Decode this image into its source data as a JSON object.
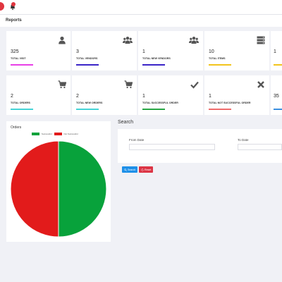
{
  "page_title": "Reports",
  "top_row": [
    {
      "value": "325",
      "label": "TOTAL VISIT",
      "icon": "user-icon",
      "accent": "#e83fe6"
    },
    {
      "value": "3",
      "label": "TOTAL VENDORS",
      "icon": "users-icon",
      "accent": "#3a24c7"
    },
    {
      "value": "1",
      "label": "TOTAL NEW VENDORS",
      "icon": "users-icon",
      "accent": "#3a24c7"
    },
    {
      "value": "10",
      "label": "TOTAL ITEMS",
      "icon": "server-icon",
      "accent": "#f2c41c"
    },
    {
      "value": "1",
      "label": "",
      "icon": "",
      "accent": "#f2c41c"
    }
  ],
  "bottom_row": [
    {
      "value": "2",
      "label": "TOTAL ORDERS",
      "icon": "cart-icon",
      "accent": "#45d3d6"
    },
    {
      "value": "2",
      "label": "TOTAL NEW ORDERS",
      "icon": "cart-icon",
      "accent": "#45d3d6"
    },
    {
      "value": "1",
      "label": "TOTAL SUCCESSFUL ORDER",
      "icon": "check-icon",
      "accent": "#28a745"
    },
    {
      "value": "1",
      "label": "TOTAL NOT SUCCESSFUL ORDER",
      "icon": "x-icon",
      "accent": "#ef6b6b"
    },
    {
      "value": "35",
      "label": "",
      "icon": "",
      "accent": "#3a8fe0"
    }
  ],
  "orders": {
    "title": "Orders"
  },
  "chart_data": {
    "type": "pie",
    "categories": [
      "Successful",
      "Not Successful"
    ],
    "values": [
      1,
      1
    ],
    "colors": [
      "#08a23b",
      "#e21b1b"
    ],
    "legend_position": "top"
  },
  "search": {
    "heading": "Search",
    "from_label": "From Date",
    "to_label": "To Date",
    "search_button": "Search",
    "reset_button": "Reset"
  }
}
